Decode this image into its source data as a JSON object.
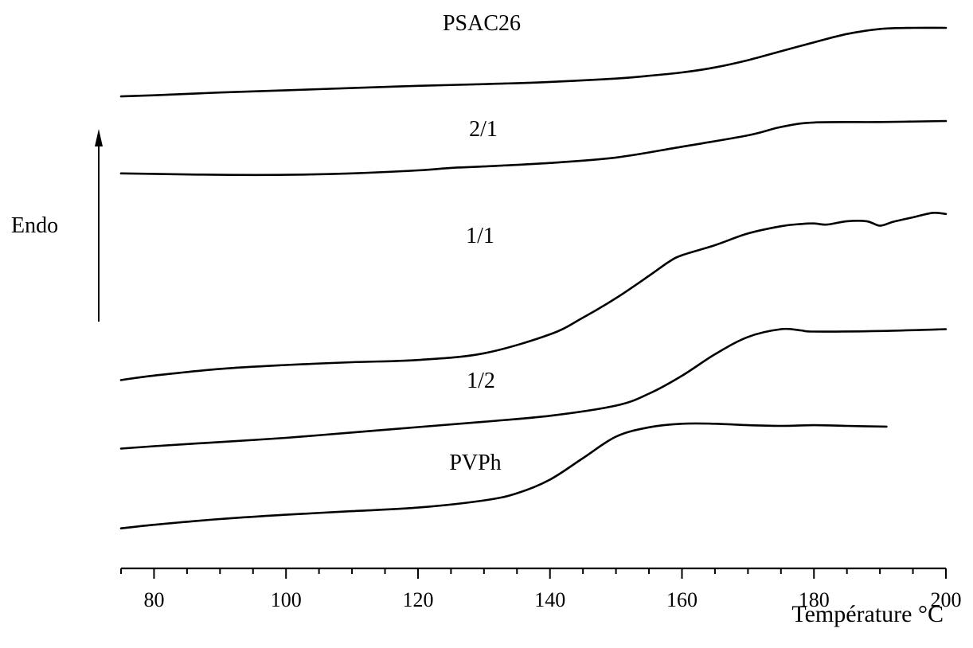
{
  "chart_data": {
    "type": "line",
    "xlabel": "Température °C",
    "ylabel": "Endo",
    "xlim": [
      75,
      200
    ],
    "x_ticks": [
      80,
      100,
      120,
      140,
      160,
      180,
      200
    ],
    "minor_tick_step": 5,
    "y_axis_visible": false,
    "grid": false,
    "legend": "none",
    "series": [
      {
        "name": "PSAC26",
        "points": [
          [
            75,
            -0.3
          ],
          [
            80,
            -0.1
          ],
          [
            90,
            0.4
          ],
          [
            100,
            0.8
          ],
          [
            110,
            1.2
          ],
          [
            120,
            1.6
          ],
          [
            130,
            1.9
          ],
          [
            140,
            2.3
          ],
          [
            150,
            2.9
          ],
          [
            155,
            3.4
          ],
          [
            160,
            4.0
          ],
          [
            165,
            4.9
          ],
          [
            170,
            6.2
          ],
          [
            175,
            7.8
          ],
          [
            180,
            9.4
          ],
          [
            185,
            10.9
          ],
          [
            190,
            11.8
          ],
          [
            195,
            12.0
          ],
          [
            200,
            12.0
          ]
        ]
      },
      {
        "name": "2/1",
        "points": [
          [
            75,
            0.2
          ],
          [
            80,
            0.1
          ],
          [
            90,
            -0.1
          ],
          [
            100,
            -0.1
          ],
          [
            110,
            0.2
          ],
          [
            120,
            0.8
          ],
          [
            125,
            1.3
          ],
          [
            130,
            1.6
          ],
          [
            140,
            2.3
          ],
          [
            150,
            3.4
          ],
          [
            160,
            5.6
          ],
          [
            170,
            7.9
          ],
          [
            175,
            9.6
          ],
          [
            180,
            10.5
          ],
          [
            190,
            10.6
          ],
          [
            200,
            10.8
          ]
        ]
      },
      {
        "name": "1/1",
        "points": [
          [
            75,
            -0.2
          ],
          [
            80,
            0.6
          ],
          [
            90,
            1.8
          ],
          [
            100,
            2.5
          ],
          [
            110,
            3.0
          ],
          [
            120,
            3.4
          ],
          [
            130,
            4.6
          ],
          [
            140,
            8.0
          ],
          [
            145,
            11.0
          ],
          [
            150,
            14.5
          ],
          [
            155,
            18.5
          ],
          [
            158,
            21.0
          ],
          [
            160,
            22.2
          ],
          [
            165,
            24.0
          ],
          [
            170,
            26.1
          ],
          [
            175,
            27.4
          ],
          [
            178,
            27.8
          ],
          [
            180,
            27.9
          ],
          [
            182,
            27.7
          ],
          [
            185,
            28.3
          ],
          [
            188,
            28.3
          ],
          [
            190,
            27.5
          ],
          [
            192,
            28.2
          ],
          [
            195,
            29.0
          ],
          [
            198,
            29.8
          ],
          [
            200,
            29.6
          ]
        ]
      },
      {
        "name": "1/2",
        "points": [
          [
            75,
            -0.2
          ],
          [
            80,
            0.2
          ],
          [
            90,
            0.9
          ],
          [
            100,
            1.6
          ],
          [
            110,
            2.5
          ],
          [
            120,
            3.4
          ],
          [
            130,
            4.3
          ],
          [
            140,
            5.3
          ],
          [
            150,
            7.0
          ],
          [
            155,
            9.0
          ],
          [
            160,
            12.0
          ],
          [
            165,
            15.6
          ],
          [
            170,
            18.5
          ],
          [
            175,
            19.8
          ],
          [
            178,
            19.6
          ],
          [
            180,
            19.4
          ],
          [
            190,
            19.5
          ],
          [
            200,
            19.8
          ]
        ]
      },
      {
        "name": "PVPh",
        "points": [
          [
            75,
            -0.3
          ],
          [
            80,
            0.2
          ],
          [
            90,
            1.0
          ],
          [
            100,
            1.6
          ],
          [
            110,
            2.1
          ],
          [
            120,
            2.6
          ],
          [
            130,
            3.6
          ],
          [
            135,
            4.6
          ],
          [
            140,
            6.5
          ],
          [
            145,
            9.5
          ],
          [
            150,
            12.5
          ],
          [
            155,
            13.8
          ],
          [
            160,
            14.3
          ],
          [
            165,
            14.3
          ],
          [
            170,
            14.1
          ],
          [
            175,
            14.0
          ],
          [
            180,
            14.1
          ],
          [
            185,
            14.0
          ],
          [
            191,
            13.9
          ]
        ]
      }
    ]
  }
}
